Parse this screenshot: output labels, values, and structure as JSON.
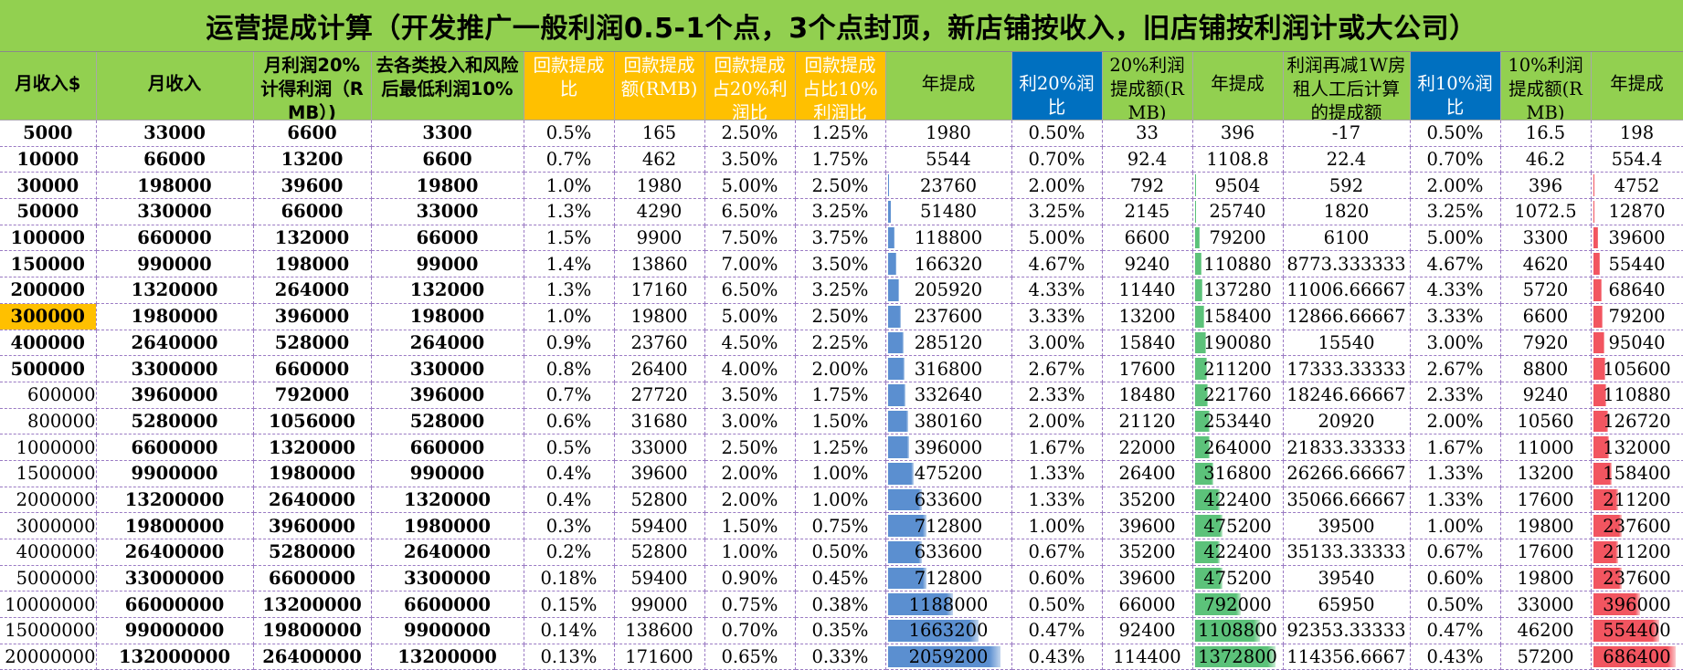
{
  "title": "运营提成计算（开发推广一般利润0.5-1个点，3个点封顶，新店铺按收入，旧店铺按利润计或大公司）",
  "headers": [
    "月收入$",
    "月收入",
    "月利润20%计得利润（RMB）)",
    "去各类投入和风险后最低利润10%",
    "回款提成比",
    "回款提成额(RMB)",
    "回款提成占20%利润比",
    "回款提成占比10%利润比",
    "年提成",
    "利20%润比",
    "20%利润提成额(RMB)",
    "年提成",
    "利润再减1W房租人工后计算的提成额",
    "利10%润比",
    "10%利润提成额(RMB)",
    "年提成"
  ],
  "rows": [
    [
      "5000",
      "33000",
      "6600",
      "3300",
      "0.5%",
      "165",
      "2.50%",
      "1.25%",
      "1980",
      "0.50%",
      "33",
      "396",
      "-17",
      "0.50%",
      "16.5",
      "198"
    ],
    [
      "10000",
      "66000",
      "13200",
      "6600",
      "0.7%",
      "462",
      "3.50%",
      "1.75%",
      "5544",
      "0.70%",
      "92.4",
      "1108.8",
      "22.4",
      "0.70%",
      "46.2",
      "554.4"
    ],
    [
      "30000",
      "198000",
      "39600",
      "19800",
      "1.0%",
      "1980",
      "5.00%",
      "2.50%",
      "23760",
      "2.00%",
      "792",
      "9504",
      "592",
      "2.00%",
      "396",
      "4752"
    ],
    [
      "50000",
      "330000",
      "66000",
      "33000",
      "1.3%",
      "4290",
      "6.50%",
      "3.25%",
      "51480",
      "3.25%",
      "2145",
      "25740",
      "1820",
      "3.25%",
      "1072.5",
      "12870"
    ],
    [
      "100000",
      "660000",
      "132000",
      "66000",
      "1.5%",
      "9900",
      "7.50%",
      "3.75%",
      "118800",
      "5.00%",
      "6600",
      "79200",
      "6100",
      "5.00%",
      "3300",
      "39600"
    ],
    [
      "150000",
      "990000",
      "198000",
      "99000",
      "1.4%",
      "13860",
      "7.00%",
      "3.50%",
      "166320",
      "4.67%",
      "9240",
      "110880",
      "8773.333333",
      "4.67%",
      "4620",
      "55440"
    ],
    [
      "200000",
      "1320000",
      "264000",
      "132000",
      "1.3%",
      "17160",
      "6.50%",
      "3.25%",
      "205920",
      "4.33%",
      "11440",
      "137280",
      "11006.66667",
      "4.33%",
      "5720",
      "68640"
    ],
    [
      "300000",
      "1980000",
      "396000",
      "198000",
      "1.0%",
      "19800",
      "5.00%",
      "2.50%",
      "237600",
      "3.33%",
      "13200",
      "158400",
      "12866.66667",
      "3.33%",
      "6600",
      "79200"
    ],
    [
      "400000",
      "2640000",
      "528000",
      "264000",
      "0.9%",
      "23760",
      "4.50%",
      "2.25%",
      "285120",
      "3.00%",
      "15840",
      "190080",
      "15540",
      "3.00%",
      "7920",
      "95040"
    ],
    [
      "500000",
      "3300000",
      "660000",
      "330000",
      "0.8%",
      "26400",
      "4.00%",
      "2.00%",
      "316800",
      "2.67%",
      "17600",
      "211200",
      "17333.33333",
      "2.67%",
      "8800",
      "105600"
    ],
    [
      "600000",
      "3960000",
      "792000",
      "396000",
      "0.7%",
      "27720",
      "3.50%",
      "1.75%",
      "332640",
      "2.33%",
      "18480",
      "221760",
      "18246.66667",
      "2.33%",
      "9240",
      "110880"
    ],
    [
      "800000",
      "5280000",
      "1056000",
      "528000",
      "0.6%",
      "31680",
      "3.00%",
      "1.50%",
      "380160",
      "2.00%",
      "21120",
      "253440",
      "20920",
      "2.00%",
      "10560",
      "126720"
    ],
    [
      "1000000",
      "6600000",
      "1320000",
      "660000",
      "0.5%",
      "33000",
      "2.50%",
      "1.25%",
      "396000",
      "1.67%",
      "22000",
      "264000",
      "21833.33333",
      "1.67%",
      "11000",
      "132000"
    ],
    [
      "1500000",
      "9900000",
      "1980000",
      "990000",
      "0.4%",
      "39600",
      "2.00%",
      "1.00%",
      "475200",
      "1.33%",
      "26400",
      "316800",
      "26266.66667",
      "1.33%",
      "13200",
      "158400"
    ],
    [
      "2000000",
      "13200000",
      "2640000",
      "1320000",
      "0.4%",
      "52800",
      "2.00%",
      "1.00%",
      "633600",
      "1.33%",
      "35200",
      "422400",
      "35066.66667",
      "1.33%",
      "17600",
      "211200"
    ],
    [
      "3000000",
      "19800000",
      "3960000",
      "1980000",
      "0.3%",
      "59400",
      "1.50%",
      "0.75%",
      "712800",
      "1.00%",
      "39600",
      "475200",
      "39500",
      "1.00%",
      "19800",
      "237600"
    ],
    [
      "4000000",
      "26400000",
      "5280000",
      "2640000",
      "0.2%",
      "52800",
      "1.00%",
      "0.50%",
      "633600",
      "0.67%",
      "35200",
      "422400",
      "35133.33333",
      "0.67%",
      "17600",
      "211200"
    ],
    [
      "5000000",
      "33000000",
      "6600000",
      "3300000",
      "0.18%",
      "59400",
      "0.90%",
      "0.45%",
      "712800",
      "0.60%",
      "39600",
      "475200",
      "39540",
      "0.60%",
      "19800",
      "237600"
    ],
    [
      "10000000",
      "66000000",
      "13200000",
      "6600000",
      "0.15%",
      "99000",
      "0.75%",
      "0.38%",
      "1188000",
      "0.50%",
      "66000",
      "792000",
      "65950",
      "0.50%",
      "33000",
      "396000"
    ],
    [
      "15000000",
      "99000000",
      "19800000",
      "9900000",
      "0.14%",
      "138600",
      "0.70%",
      "0.35%",
      "1663200",
      "0.47%",
      "92400",
      "1108800",
      "92353.33333",
      "0.47%",
      "46200",
      "554400"
    ],
    [
      "20000000",
      "132000000",
      "26400000",
      "13200000",
      "0.13%",
      "171600",
      "0.65%",
      "0.33%",
      "2059200",
      "0.43%",
      "114400",
      "1372800",
      "114356.6667",
      "0.43%",
      "57200",
      "686400"
    ]
  ],
  "databars": {
    "annual_commission_blue": {
      "column": 8,
      "color": "#5b8fd0",
      "max": 2059200
    },
    "annual_commission_green": {
      "column": 11,
      "color": "#5cc27a",
      "max": 1372800
    },
    "annual_commission_red": {
      "column": 15,
      "color": "#f25560",
      "max": 686400
    }
  },
  "highlighted_cell": {
    "row": 7,
    "column": 0,
    "color": "#ffc000"
  },
  "colors": {
    "title_bg": "#92d050",
    "header_green": "#92d050",
    "header_yellow": "#ffc000",
    "header_blue": "#0070c0"
  }
}
